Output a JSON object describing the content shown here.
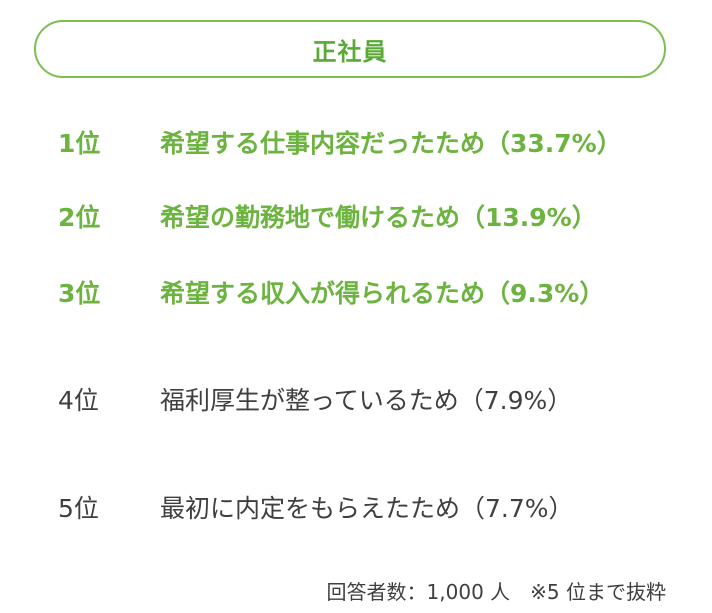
{
  "header": {
    "title": "正社員"
  },
  "ranking": [
    {
      "rank": "1位",
      "reason": "希望する仕事内容だったため（33.7%）",
      "highlight": true
    },
    {
      "rank": "2位",
      "reason": "希望の勤務地で働けるため（13.9%）",
      "highlight": true
    },
    {
      "rank": "3位",
      "reason": "希望する収入が得られるため（9.3%）",
      "highlight": true
    },
    {
      "rank": "4位",
      "reason": "福利厚生が整っているため（7.9%）",
      "highlight": false
    },
    {
      "rank": "5位",
      "reason": "最初に内定をもらえたため（7.7%）",
      "highlight": false
    }
  ],
  "footnote": "回答者数：1,000 人　※5 位まで抜粋",
  "colors": {
    "accent": "#6cb33f",
    "border": "#7cbf4f",
    "text": "#3f3f3f"
  }
}
